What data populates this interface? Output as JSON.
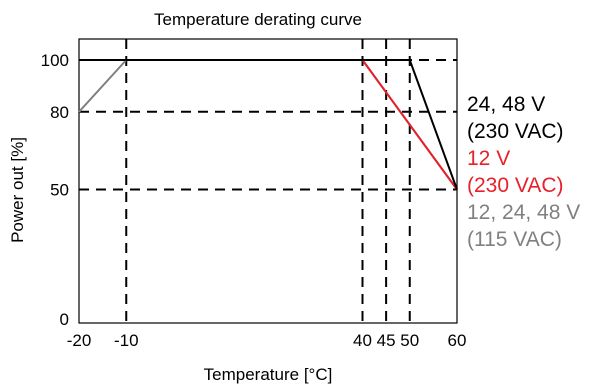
{
  "chart_data": {
    "type": "line",
    "title": "Temperature derating curve",
    "xlabel": "Temperature [°C]",
    "ylabel": "Power out [%]",
    "xlim": [
      -20,
      60
    ],
    "ylim": [
      0,
      100
    ],
    "x_ticks": [
      -20,
      -10,
      40,
      45,
      50,
      60
    ],
    "y_ticks": [
      0,
      50,
      80,
      100
    ],
    "vertical_reference_lines": [
      -10,
      40,
      45,
      50
    ],
    "horizontal_reference_lines": [
      50,
      80,
      100
    ],
    "grid": false,
    "legend_placement": "right",
    "series": [
      {
        "label_lines": [
          "24, 48 V",
          "(230 VAC)"
        ],
        "color": "#000000",
        "x": [
          -20,
          50,
          60
        ],
        "y": [
          100,
          100,
          50
        ]
      },
      {
        "label_lines": [
          "12 V",
          "(230 VAC)"
        ],
        "color": "#e8202a",
        "x": [
          -20,
          40,
          60
        ],
        "y": [
          100,
          100,
          50
        ]
      },
      {
        "label_lines": [
          "12, 24, 48 V",
          "(115 VAC)"
        ],
        "color": "#808080",
        "x": [
          -20,
          -10,
          40,
          60
        ],
        "y": [
          80,
          100,
          100,
          50
        ]
      }
    ]
  }
}
